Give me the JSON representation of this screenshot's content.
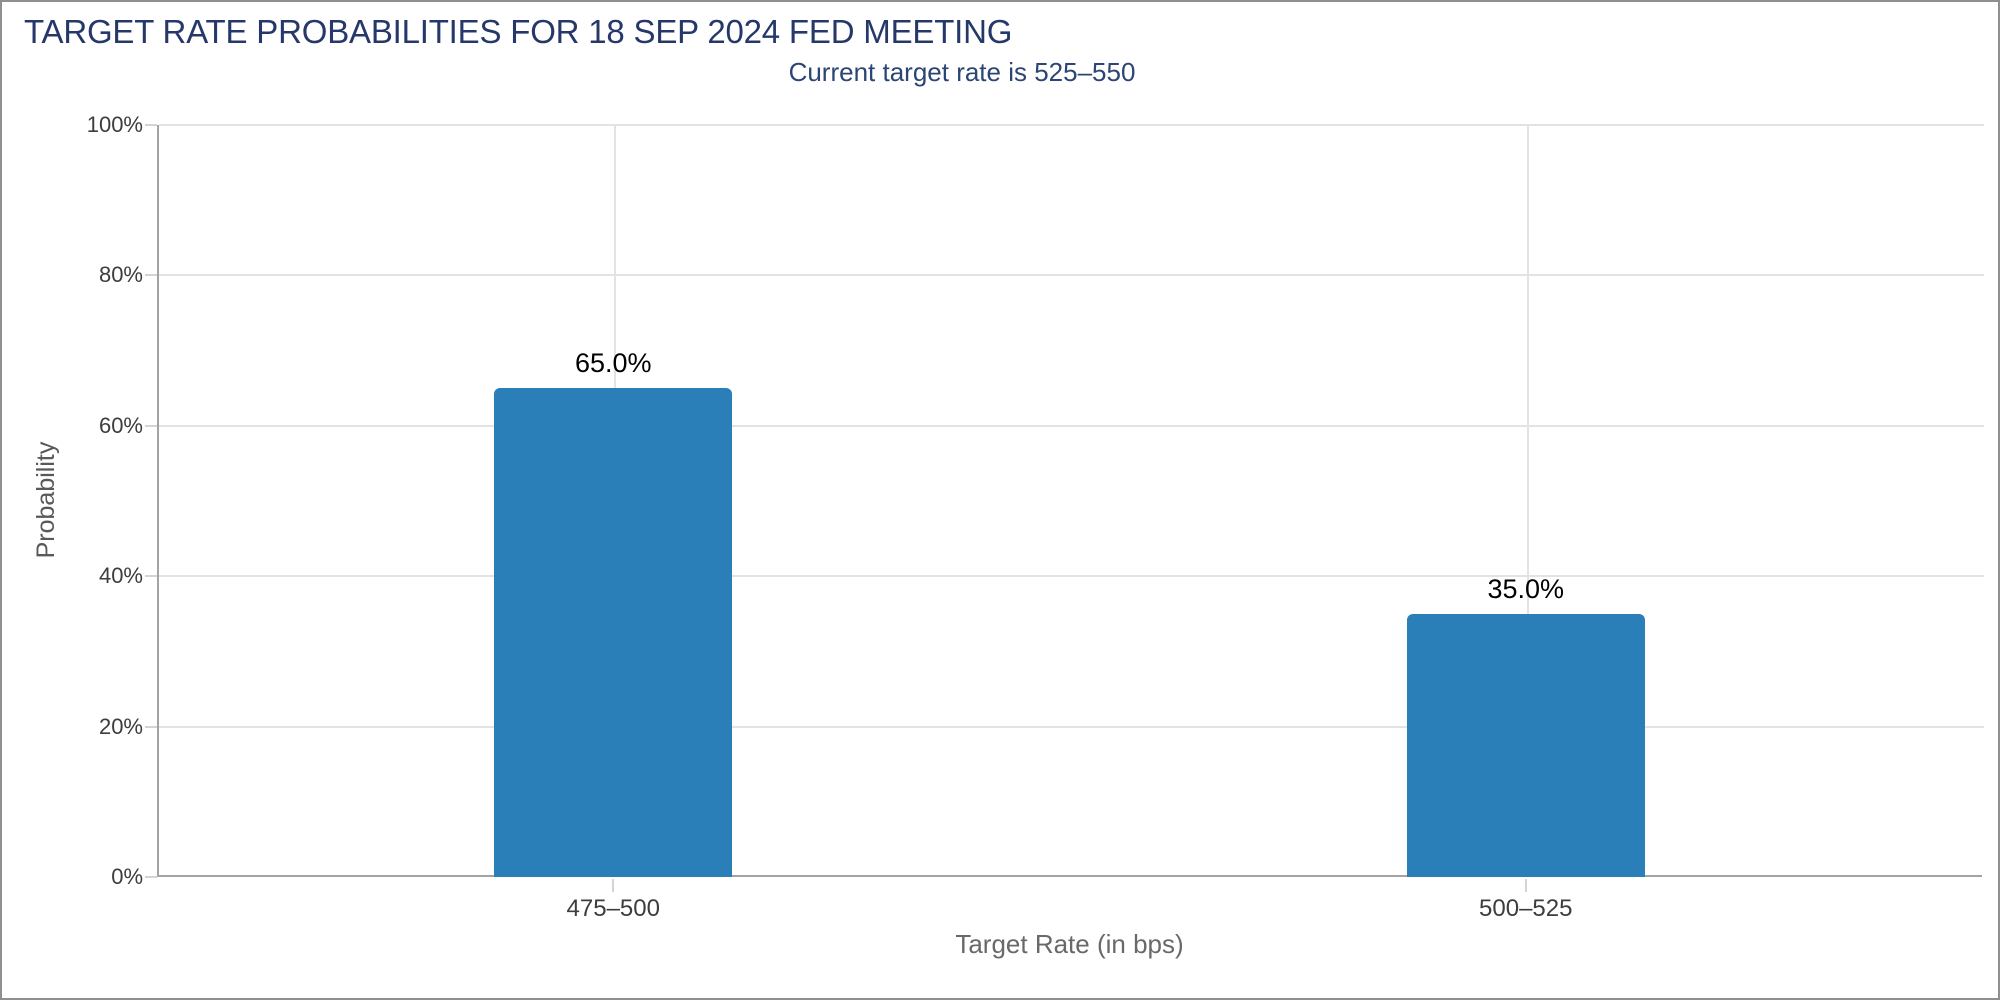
{
  "window": {
    "background_color": "#ffffff",
    "border_color": "#8f8f8f"
  },
  "header": {
    "title": "TARGET RATE PROBABILITIES FOR 18 SEP 2024 FED MEETING",
    "subtitle": "Current target rate is 525–550",
    "title_color": "#26386a",
    "subtitle_color": "#2b4574"
  },
  "chart_data": {
    "type": "bar",
    "title": "TARGET RATE PROBABILITIES FOR 18 SEP 2024 FED MEETING",
    "subtitle": "Current target rate is 525–550",
    "categories": [
      "475–500",
      "500–525"
    ],
    "values": [
      65.0,
      35.0
    ],
    "value_labels": [
      "65.0%",
      "35.0%"
    ],
    "xlabel": "Target Rate (in bps)",
    "ylabel": "Probability",
    "ylim": [
      0,
      100
    ],
    "y_tick_values": [
      0,
      20,
      40,
      60,
      80,
      100
    ],
    "y_tick_labels": [
      "0%",
      "20%",
      "40%",
      "60%",
      "80%",
      "100%"
    ],
    "grid": true,
    "legend": "none",
    "bar_color": "#2a7fb8",
    "value_label_color": "#000000",
    "grid_color": "#e3e3e3",
    "axis_line_color": "#a3a3a3",
    "tick_label_color": "#3d3d3d",
    "axis_title_color": "#696969"
  }
}
